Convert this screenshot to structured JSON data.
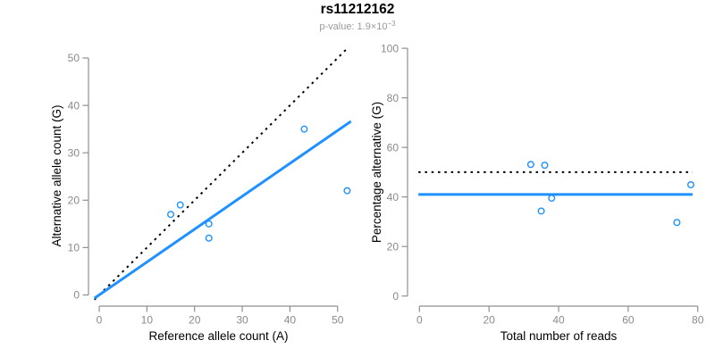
{
  "header": {
    "title": "rs11212162",
    "pvalue_prefix": "p-value: 1.9×10",
    "pvalue_exponent": "−3"
  },
  "colors": {
    "accent_blue": "#1E90FF",
    "dotted_black": "#000000",
    "axis_line_gray": "#8f8f8f",
    "tick_label_gray": "#8a8a8a",
    "axis_title_black": "#000000",
    "subtitle_gray": "#9a9a9a",
    "background": "#ffffff"
  },
  "chart_data": [
    {
      "type": "scatter",
      "panel": "allele-counts-panel",
      "xlabel": "Reference allele count (A)",
      "ylabel": "Alternative allele count (G)",
      "xlim": [
        0,
        52
      ],
      "ylim": [
        0,
        52
      ],
      "xticks": [
        0,
        10,
        20,
        30,
        40,
        50
      ],
      "yticks": [
        0,
        10,
        20,
        30,
        40,
        50
      ],
      "grid": false,
      "legend": "none",
      "points": [
        [
          15,
          17
        ],
        [
          17,
          19
        ],
        [
          23,
          12
        ],
        [
          23,
          15
        ],
        [
          43,
          35
        ],
        [
          52,
          22
        ]
      ],
      "lines": [
        {
          "name": "identity",
          "style": "dotted",
          "color": "#000000",
          "x1": -1,
          "y1": -1,
          "x2": 52,
          "y2": 52,
          "slope": 1
        },
        {
          "name": "regression",
          "style": "solid",
          "color": "#1E90FF",
          "x1": -1,
          "y1": -0.69,
          "x2": 52.8,
          "y2": 36.64,
          "slope": 0.694
        }
      ]
    },
    {
      "type": "scatter",
      "panel": "percentage-panel",
      "xlabel": "Total number of reads",
      "ylabel": "Percentage alternative (G)",
      "xlim": [
        0,
        80
      ],
      "ylim": [
        0,
        100
      ],
      "xticks": [
        0,
        20,
        40,
        60,
        80
      ],
      "yticks": [
        0,
        20,
        40,
        60,
        80,
        100
      ],
      "grid": false,
      "legend": "none",
      "points": [
        [
          32,
          53.1
        ],
        [
          36,
          52.8
        ],
        [
          35,
          34.3
        ],
        [
          38,
          39.5
        ],
        [
          74,
          29.7
        ],
        [
          78,
          44.9
        ]
      ],
      "lines": [
        {
          "name": "expected-50pct",
          "style": "dotted",
          "color": "#000000",
          "x1": -0.3,
          "y1": 50,
          "x2": 78.5,
          "y2": 50
        },
        {
          "name": "observed-rate",
          "style": "solid",
          "color": "#1E90FF",
          "x1": -0.3,
          "y1": 41,
          "x2": 78.5,
          "y2": 41
        }
      ]
    }
  ]
}
